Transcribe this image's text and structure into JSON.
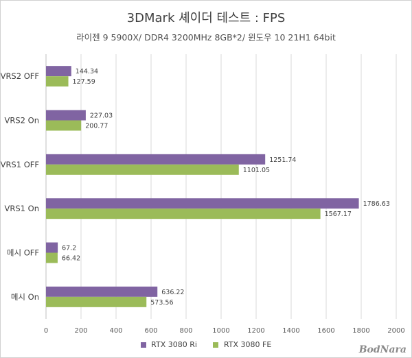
{
  "chart_data": {
    "type": "bar",
    "orientation": "horizontal",
    "title": "3DMark 셰이더 테스트 : FPS",
    "subtitle": "라이젠 9 5900X/ DDR4 3200MHz 8GB*2/ 윈도우 10 21H1 64bit",
    "categories": [
      "VRS2 OFF",
      "VRS2 On",
      "VRS1 OFF",
      "VRS1 On",
      "메시 OFF",
      "메시 On"
    ],
    "series": [
      {
        "name": "RTX 3080 Ri",
        "color": "#8064a2",
        "values": [
          144.34,
          227.03,
          1251.74,
          1786.63,
          67.2,
          636.22
        ]
      },
      {
        "name": "RTX 3080 FE",
        "color": "#9bbb59",
        "values": [
          127.59,
          200.77,
          1101.05,
          1567.17,
          66.42,
          573.56
        ]
      }
    ],
    "xlim": [
      0,
      2000
    ],
    "xticks": [
      "0",
      "200",
      "400",
      "600",
      "800",
      "1000",
      "1200",
      "1400",
      "1600",
      "1800",
      "2000"
    ],
    "grid": "vertical",
    "legend_position": "bottom",
    "data_labels": true
  },
  "watermark": "BodNara"
}
